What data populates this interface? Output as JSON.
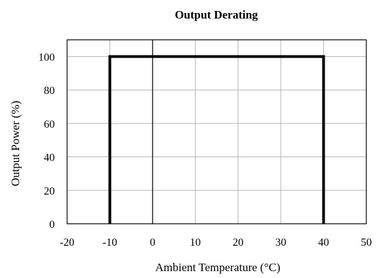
{
  "chart_data": {
    "type": "line",
    "title": "Output Derating",
    "xlabel": "Ambient Temperature (°C)",
    "ylabel": "Output Power (%)",
    "xlim": [
      -20,
      50
    ],
    "ylim": [
      0,
      110
    ],
    "xticks": [
      -20,
      -10,
      0,
      10,
      20,
      30,
      40,
      50
    ],
    "yticks": [
      0,
      20,
      40,
      60,
      80,
      100
    ],
    "grid": true,
    "legend": "none",
    "series": [
      {
        "x": [
          -10,
          -10,
          40,
          40
        ],
        "y": [
          0,
          100,
          100,
          0
        ],
        "color": "#000000"
      }
    ]
  }
}
